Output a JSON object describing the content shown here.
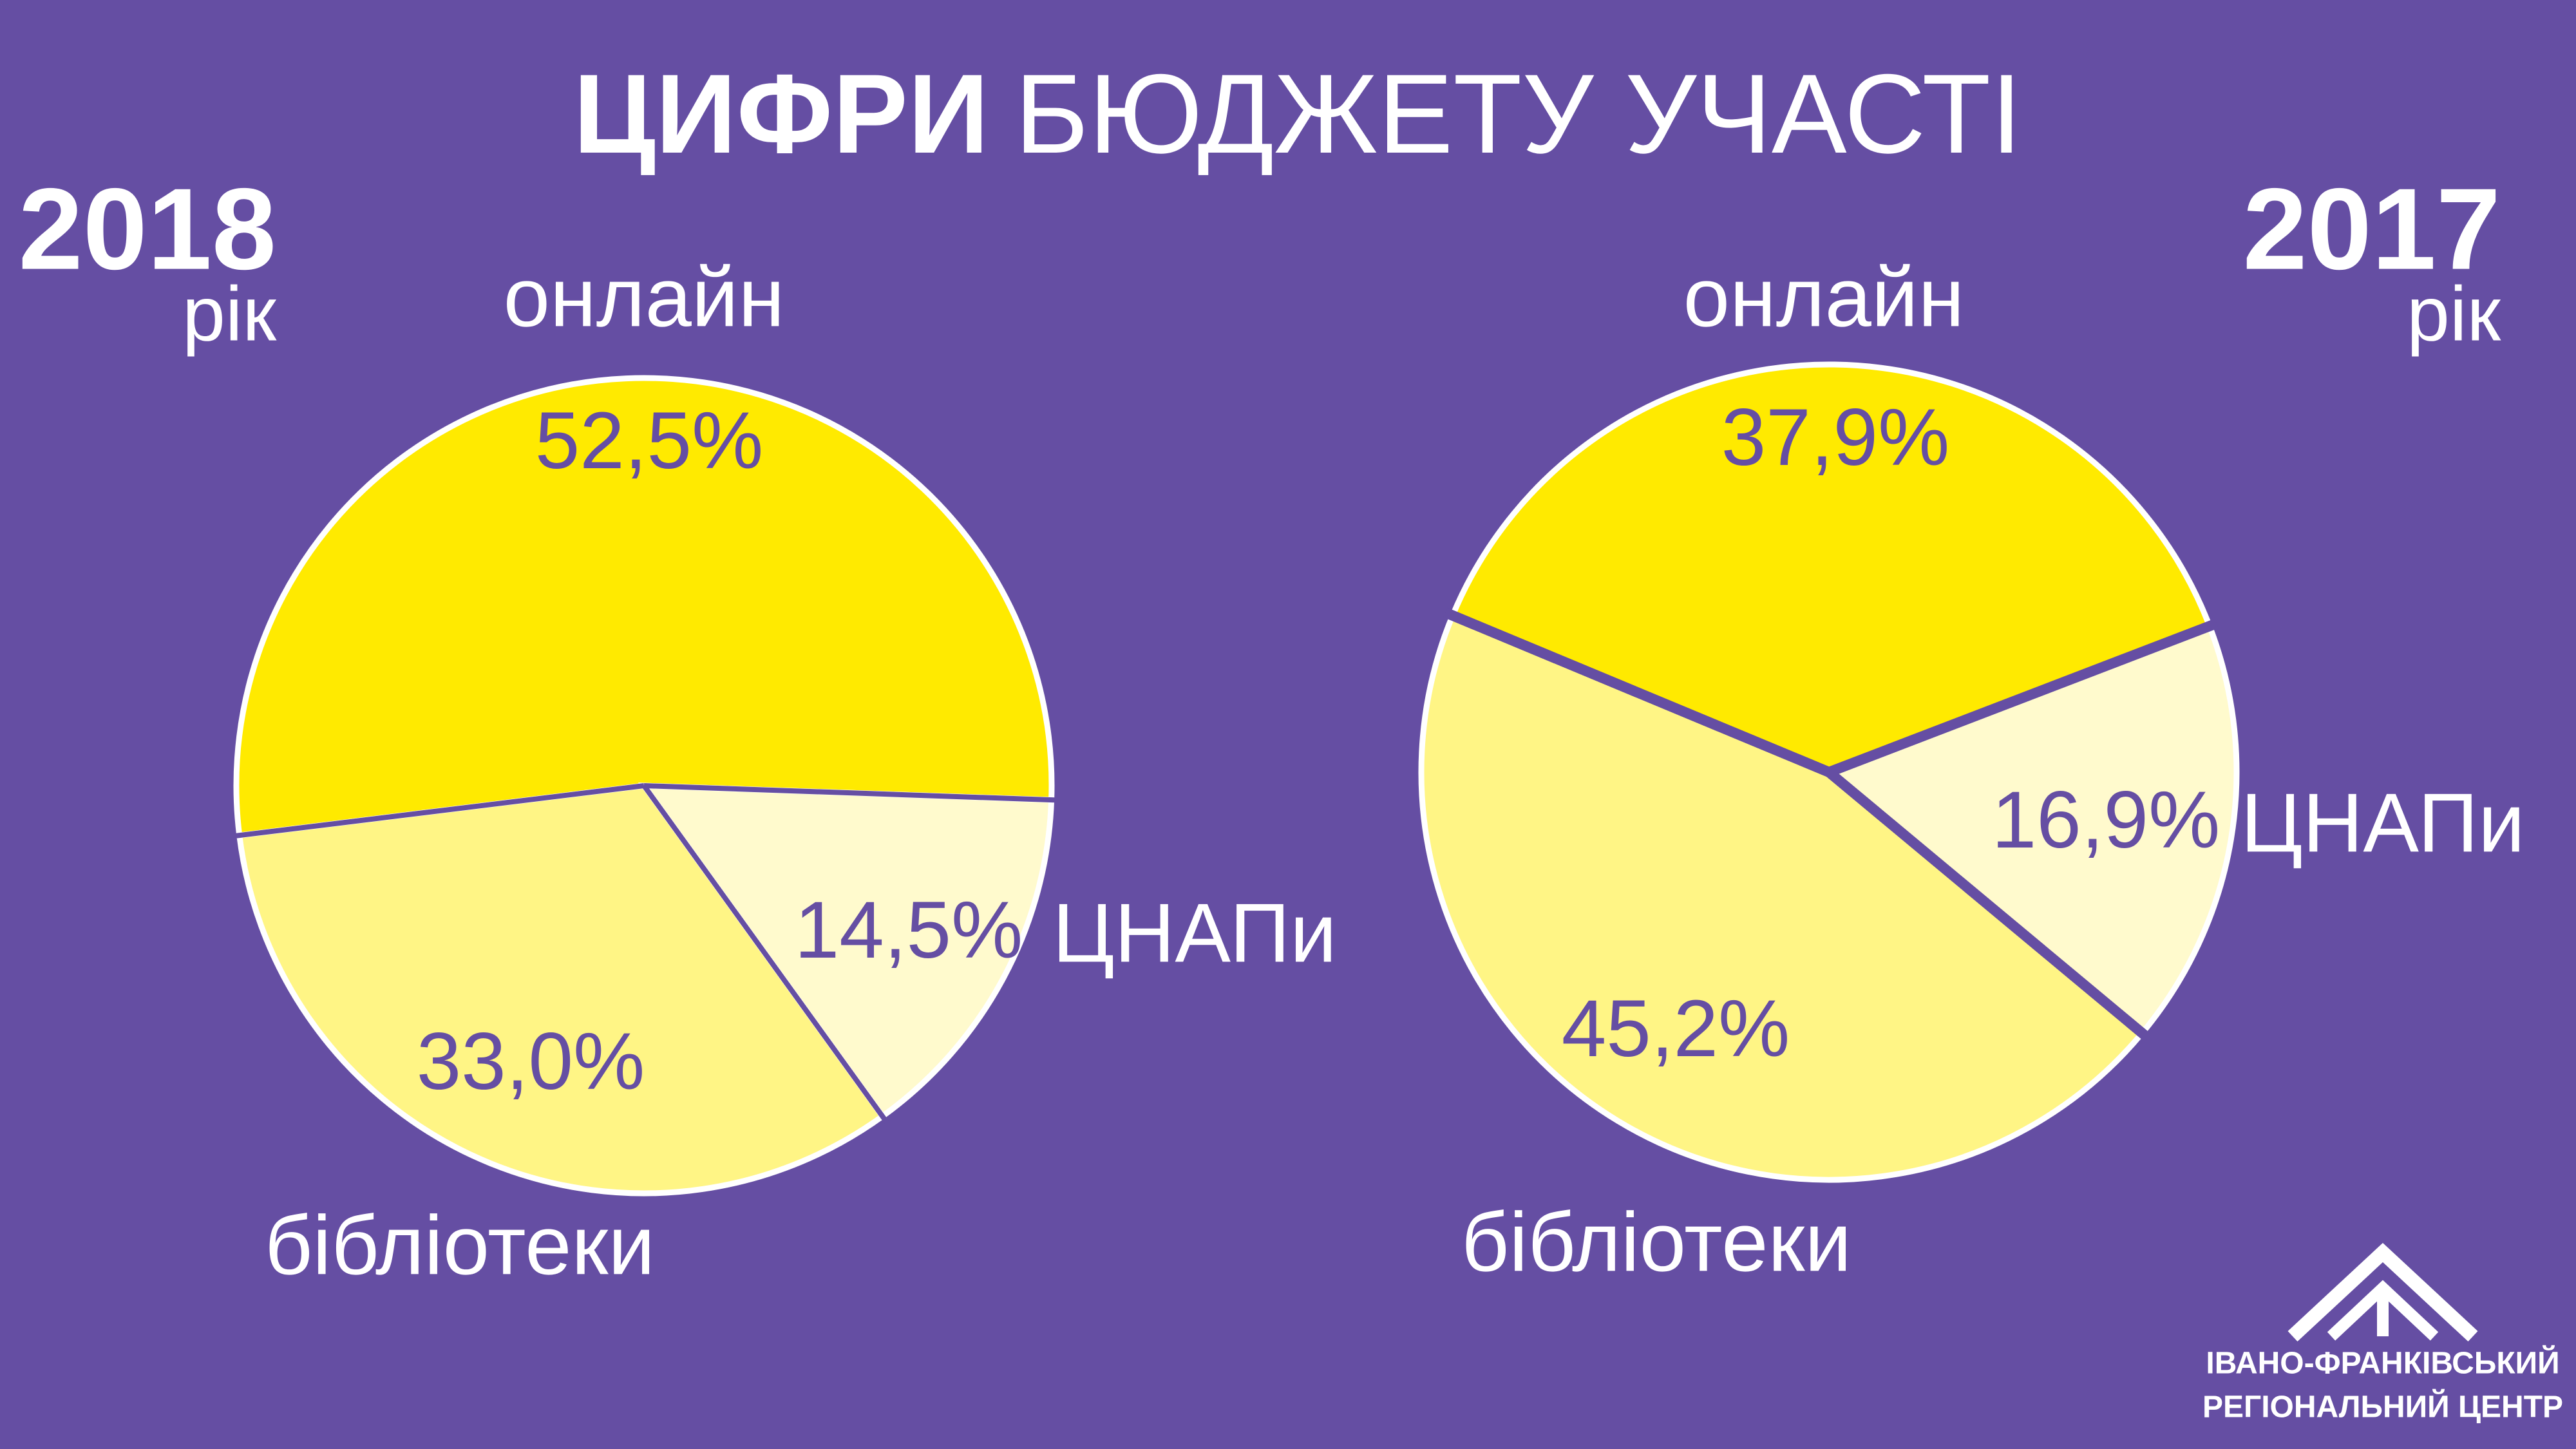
{
  "header": {
    "title_bold": "ЦИФРИ",
    "title_light": "БЮДЖЕТУ УЧАСТІ"
  },
  "logo": {
    "line1": "ІВАНО-ФРАНКІВСЬКИЙ",
    "line2": "РЕГІОНАЛЬНИЙ ЦЕНТР"
  },
  "chart_data": [
    {
      "type": "pie",
      "title": "2018",
      "subtitle": "рік",
      "categories": [
        "онлайн",
        "ЦНАПи",
        "бібліотеки"
      ],
      "values": [
        52.5,
        14.5,
        33.0
      ],
      "value_labels": [
        "52,5%",
        "14,5%",
        "33,0%"
      ],
      "colors": [
        "#FFEA00",
        "#FFFACD",
        "#FFF585"
      ]
    },
    {
      "type": "pie",
      "title": "2017",
      "subtitle": "рік",
      "categories": [
        "онлайн",
        "ЦНАПи",
        "бібліотеки"
      ],
      "values": [
        37.9,
        16.9,
        45.2
      ],
      "value_labels": [
        "37,9%",
        "16,9%",
        "45,2%"
      ],
      "colors": [
        "#FFEA00",
        "#FFFACD",
        "#FFF585"
      ]
    }
  ]
}
